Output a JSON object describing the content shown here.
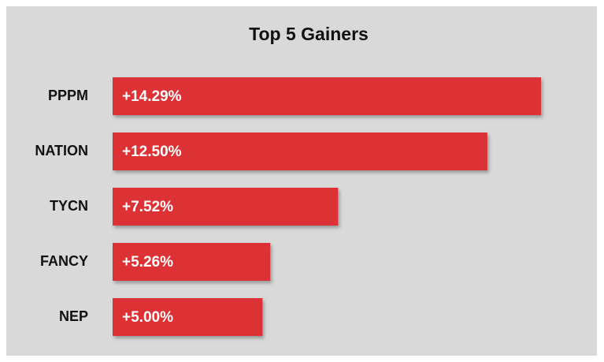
{
  "chart_data": {
    "type": "bar",
    "orientation": "horizontal",
    "title": "Top 5 Gainers",
    "categories": [
      "PPPM",
      "NATION",
      "TYCN",
      "FANCY",
      "NEP"
    ],
    "values": [
      14.29,
      12.5,
      7.52,
      5.26,
      5.0
    ],
    "value_labels": [
      "+14.29%",
      "+12.50%",
      "+7.52%",
      "+5.26%",
      "+5.00%"
    ],
    "color": "#dc3336"
  }
}
